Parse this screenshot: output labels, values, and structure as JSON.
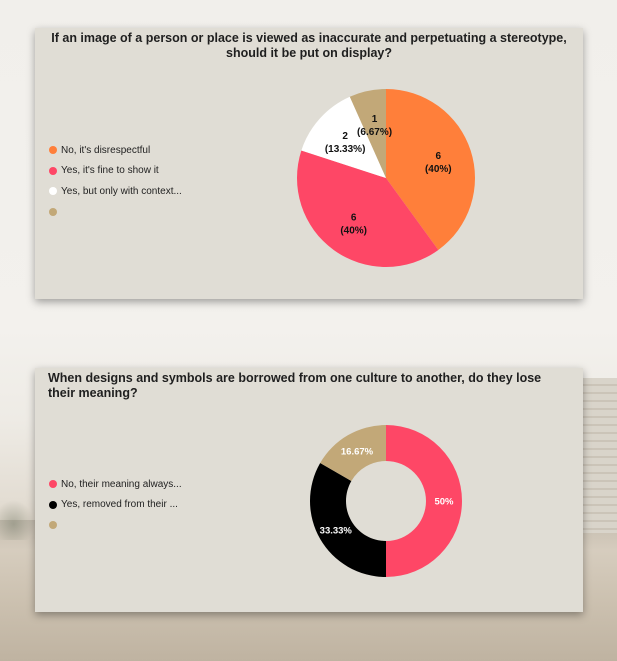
{
  "chart_data": [
    {
      "type": "pie",
      "title": "If an image of a person or place is viewed as inaccurate and perpetuating a stereotype, should it be put on display?",
      "legend": [
        {
          "label": "No, it's disrespectful",
          "color": "#ff7f3a"
        },
        {
          "label": "Yes, it's fine to show it",
          "color": "#fe4766"
        },
        {
          "label": "Yes, but only with context...",
          "color": "#ffffff"
        },
        {
          "label": "",
          "color": "#c2a878"
        }
      ],
      "slices": [
        {
          "value": 6,
          "percent_label": "(40%)",
          "color": "#ff7f3a"
        },
        {
          "value": 6,
          "percent_label": "(40%)",
          "color": "#fe4766"
        },
        {
          "value": 2,
          "percent_label": "(13.33%)",
          "color": "#ffffff"
        },
        {
          "value": 1,
          "percent_label": "(6.67%)",
          "color": "#c2a878"
        }
      ],
      "legend_placement": "left"
    },
    {
      "type": "pie",
      "subtype": "donut",
      "title": "When designs and symbols are borrowed from one culture to another, do they lose their meaning?",
      "legend": [
        {
          "label": "No, their meaning always...",
          "color": "#fe4766"
        },
        {
          "label": "Yes, removed from their ...",
          "color": "#000000"
        },
        {
          "label": "",
          "color": "#c2a878"
        }
      ],
      "slices": [
        {
          "value": 50,
          "percent_label": "50%",
          "color": "#fe4766"
        },
        {
          "value": 33.33,
          "percent_label": "33.33%",
          "color": "#000000"
        },
        {
          "value": 16.67,
          "percent_label": "16.67%",
          "color": "#c2a878"
        }
      ],
      "legend_placement": "left"
    }
  ]
}
